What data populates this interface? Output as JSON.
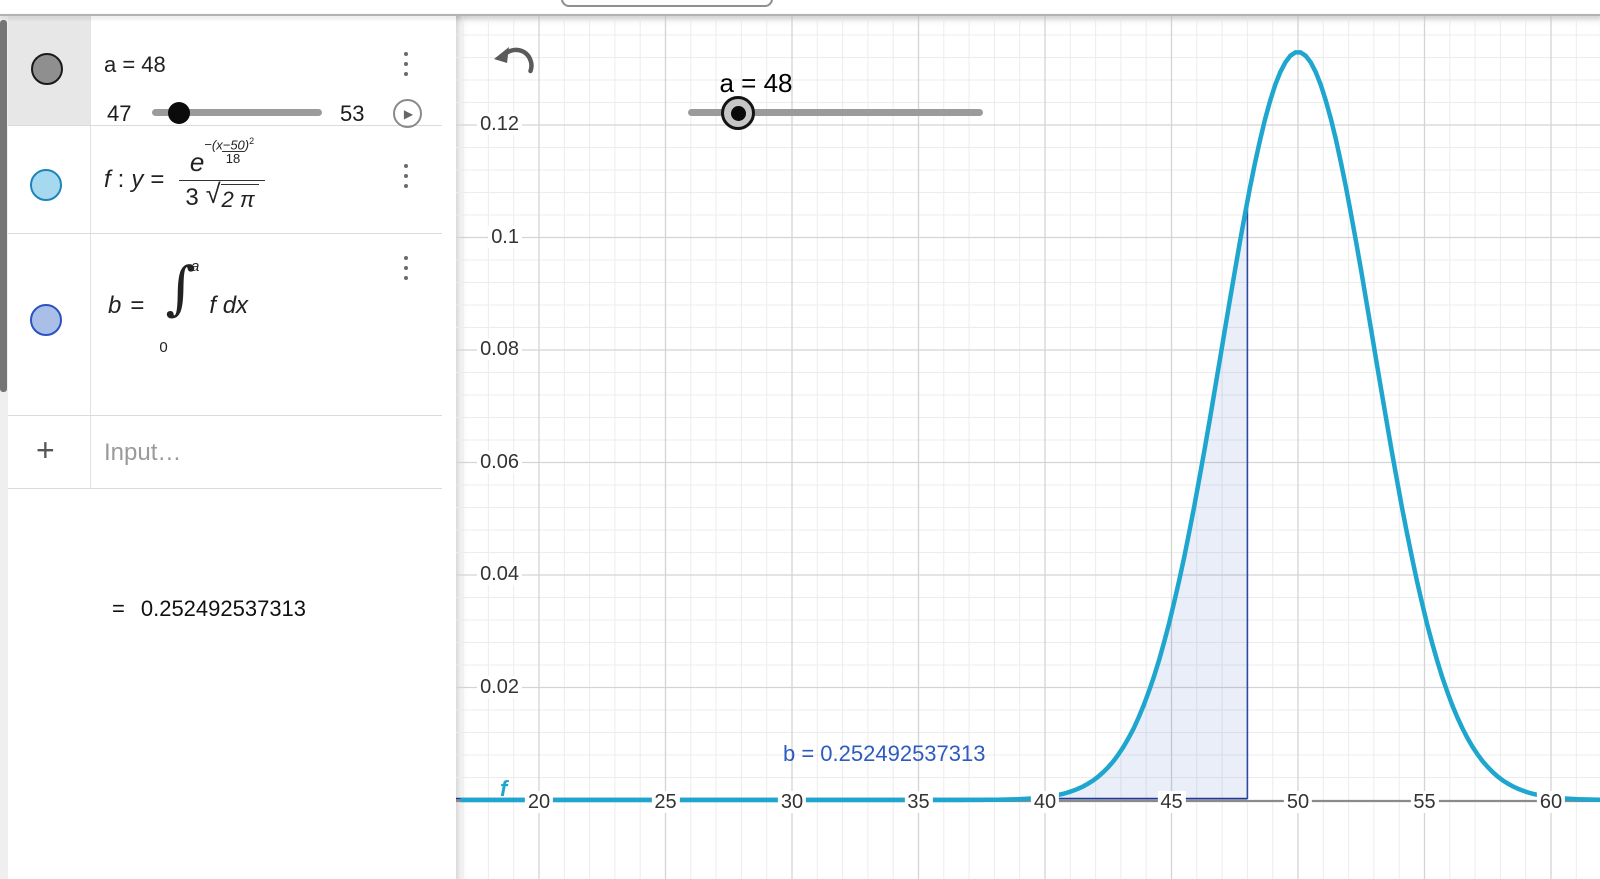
{
  "algebra": {
    "slider_row": {
      "name_value": "a = 48",
      "min": "47",
      "max": "53"
    },
    "function_row": {
      "name": "f",
      "colon": ":",
      "lhs": "y",
      "eq": "=",
      "base": "e",
      "exp_minus": "−",
      "exp_num": "(x−50)",
      "exp_sup": "2",
      "exp_den": "18",
      "den_coeff": "3",
      "sqrt_symbol": "√",
      "sqrt_radicand": "2 π"
    },
    "integral_row": {
      "lhs": "b",
      "eq": "=",
      "int_symbol": "∫",
      "upper": "a",
      "lower": "0",
      "integrand": "f dx",
      "value_eq": "=",
      "value": "0.252492537313"
    },
    "input_row": {
      "plus": "+",
      "placeholder": "Input…"
    }
  },
  "graph": {
    "slider_label": "a = 48",
    "b_label": "b = 0.252492537313",
    "f_label": "f"
  },
  "chart_data": {
    "type": "line",
    "title": "Normal distribution curve with shaded integral region",
    "function": "y = e^(−(x−50)²/18) / (3√(2π))",
    "mu": 50,
    "sigma": 3,
    "shade_from": 0,
    "shade_to": 48,
    "integral_value": 0.252492537313,
    "x_ticks": [
      20,
      25,
      30,
      35,
      40,
      45,
      50,
      55,
      60
    ],
    "y_ticks": [
      0.02,
      0.04,
      0.06,
      0.08,
      0.1,
      0.12
    ],
    "x_range": [
      16.9,
      62.5
    ],
    "y_range": [
      0,
      0.1395
    ],
    "grid": "on",
    "legend_position": "none",
    "curve_color": "#1fa6ce",
    "region_fill": "rgba(44,92,197,0.10)",
    "region_border": "#22398f",
    "axis_color": "#8a8a8a",
    "grid_major_color": "#d4d4d4",
    "grid_minor_color": "#ececec",
    "label_color": "#2d5bbf"
  }
}
